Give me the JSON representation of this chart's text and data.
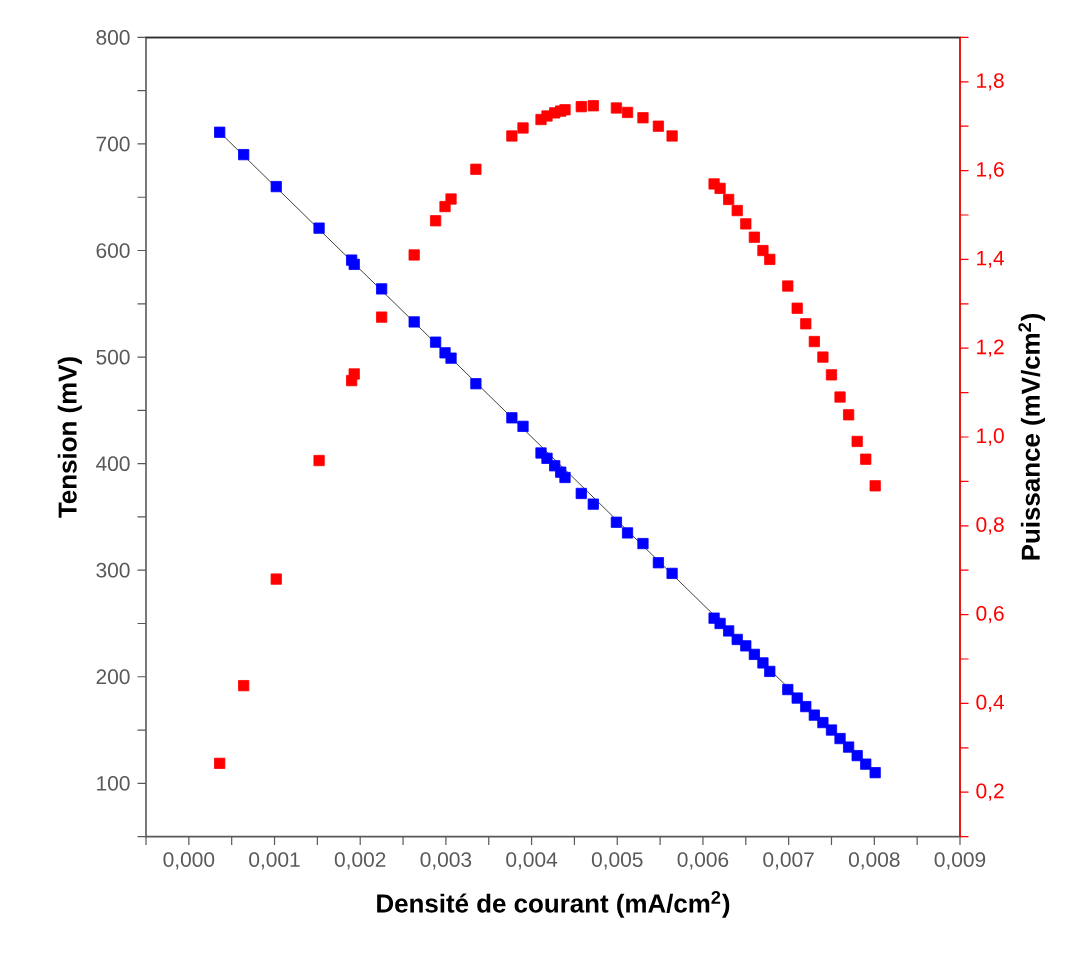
{
  "chart_data": {
    "type": "scatter",
    "xlabel": "Densité de courant  (mA/cm$^{2}$)",
    "ylabel": "Tension  (mV)",
    "y2label": "Puissance (mV/cm$^{2}$)",
    "x": [
      0.00036,
      0.00064,
      0.00102,
      0.00152,
      0.0019,
      0.00193,
      0.00225,
      0.00263,
      0.00288,
      0.00299,
      0.00306,
      0.00335,
      0.00377,
      0.0039,
      0.00411,
      0.00418,
      0.00427,
      0.00434,
      0.00439,
      0.00458,
      0.00472,
      0.00499,
      0.00512,
      0.0053,
      0.00548,
      0.00564,
      0.00613,
      0.0062,
      0.0063,
      0.0064,
      0.0065,
      0.0066,
      0.0067,
      0.00678,
      0.00699,
      0.0071,
      0.0072,
      0.0073,
      0.0074,
      0.0075,
      0.0076,
      0.0077,
      0.0078,
      0.0079,
      0.00801
    ],
    "series": [
      {
        "type": "line",
        "color": "#404040",
        "x": [
          0.00036,
          0.00801
        ],
        "values": [
          711,
          110
        ]
      },
      {
        "color": "#0000ff",
        "marker": "square",
        "values": [
          711,
          690,
          660,
          621,
          591,
          587,
          564,
          533,
          514,
          504,
          499,
          475,
          443,
          435,
          410,
          405,
          398,
          392,
          387,
          372,
          362,
          345,
          335,
          325,
          307,
          297,
          255,
          250,
          243,
          235,
          229,
          221,
          213,
          205,
          188,
          180,
          172,
          164,
          157,
          150,
          142,
          134,
          126,
          118,
          110
        ]
      },
      {
        "color": "#ff0000",
        "marker": "square",
        "axis": "y2",
        "values": [
          0.265,
          0.44,
          0.68,
          0.947,
          1.127,
          1.142,
          1.27,
          1.41,
          1.487,
          1.519,
          1.536,
          1.603,
          1.678,
          1.696,
          1.715,
          1.723,
          1.73,
          1.734,
          1.737,
          1.744,
          1.746,
          1.741,
          1.731,
          1.719,
          1.7,
          1.678,
          1.57,
          1.56,
          1.535,
          1.51,
          1.48,
          1.45,
          1.42,
          1.4,
          1.34,
          1.29,
          1.255,
          1.215,
          1.18,
          1.14,
          1.09,
          1.05,
          0.99,
          0.95,
          0.89
        ]
      }
    ],
    "xlim": [
      -0.0005,
      0.009
    ],
    "xticks": [
      {
        "value": -0.0005,
        "label": null
      },
      {
        "value": 0,
        "label": "0,000"
      },
      {
        "value": 0.0005,
        "label": null
      },
      {
        "value": 0.001,
        "label": "0,001"
      },
      {
        "value": 0.0015,
        "label": null
      },
      {
        "value": 0.002,
        "label": "0,002"
      },
      {
        "value": 0.0025,
        "label": null
      },
      {
        "value": 0.003,
        "label": "0,003"
      },
      {
        "value": 0.0035,
        "label": null
      },
      {
        "value": 0.004,
        "label": "0,004"
      },
      {
        "value": 0.0045,
        "label": null
      },
      {
        "value": 0.005,
        "label": "0,005"
      },
      {
        "value": 0.0055,
        "label": null
      },
      {
        "value": 0.006,
        "label": "0,006"
      },
      {
        "value": 0.0065,
        "label": null
      },
      {
        "value": 0.007,
        "label": "0,007"
      },
      {
        "value": 0.0075,
        "label": null
      },
      {
        "value": 0.008,
        "label": "0,008"
      },
      {
        "value": 0.0085,
        "label": null
      },
      {
        "value": 0.009,
        "label": "0,009"
      }
    ],
    "ylim": [
      50,
      800
    ],
    "yticks": [
      {
        "value": 50,
        "label": null
      },
      100,
      {
        "value": 150,
        "label": null
      },
      200,
      {
        "value": 250,
        "label": null
      },
      300,
      {
        "value": 350,
        "label": null
      },
      400,
      {
        "value": 450,
        "label": null
      },
      500,
      {
        "value": 550,
        "label": null
      },
      600,
      {
        "value": 650,
        "label": null
      },
      700,
      {
        "value": 750,
        "label": null
      },
      800
    ],
    "y2lim": [
      0.1,
      1.9
    ],
    "y2ticks": [
      {
        "value": 0.1,
        "label": null
      },
      {
        "value": 0.2,
        "label": "0,2"
      },
      {
        "value": 0.3,
        "label": null
      },
      {
        "value": 0.4,
        "label": "0,4"
      },
      {
        "value": 0.5,
        "label": null
      },
      {
        "value": 0.6,
        "label": "0,6"
      },
      {
        "value": 0.7,
        "label": null
      },
      {
        "value": 0.8,
        "label": "0,8"
      },
      {
        "value": 0.9,
        "label": null
      },
      {
        "value": 1.0,
        "label": "1,0"
      },
      {
        "value": 1.1,
        "label": null
      },
      {
        "value": 1.2,
        "label": "1,2"
      },
      {
        "value": 1.3,
        "label": null
      },
      {
        "value": 1.4,
        "label": "1,4"
      },
      {
        "value": 1.5,
        "label": null
      },
      {
        "value": 1.6,
        "label": "1,6"
      },
      {
        "value": 1.7,
        "label": null
      },
      {
        "value": 1.8,
        "label": "1,8"
      },
      {
        "value": 1.9,
        "label": null
      }
    ]
  }
}
